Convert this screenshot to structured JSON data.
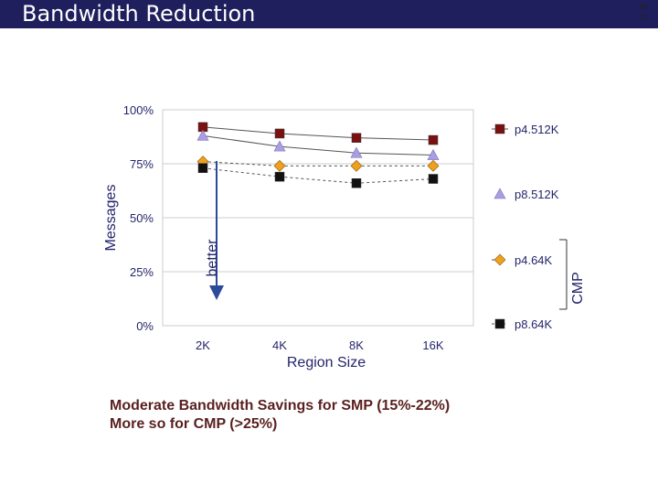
{
  "slide": {
    "title": "Bandwidth Reduction",
    "logo_line1": "M",
    "logo_line2": "OS"
  },
  "annotations": {
    "better_label": "better",
    "cmp_label": "CMP",
    "note_line1": "Moderate Bandwidth Savings for SMP (15%-22%)",
    "note_line2": "More so for CMP (>25%)"
  },
  "colors": {
    "title_bar": "#1f1f5e",
    "axis_text": "#24246b",
    "note_text": "#5a1f1f",
    "p4_512K": "#7b1010",
    "p8_512K": "#a99fe0",
    "p4_64K": "#f0a020",
    "p8_64K": "#111111"
  },
  "chart_data": {
    "type": "line",
    "title": "",
    "xlabel": "Region Size",
    "ylabel": "Messages",
    "categories": [
      "2K",
      "4K",
      "8K",
      "16K"
    ],
    "ylim": [
      0,
      100
    ],
    "yticks": [
      "0%",
      "25%",
      "50%",
      "75%",
      "100%"
    ],
    "grid": true,
    "legend_position": "right",
    "series": [
      {
        "name": "p4.512K",
        "values": [
          92,
          89,
          87,
          86
        ],
        "marker": "square",
        "line": "solid",
        "color": "#7b1010"
      },
      {
        "name": "p8.512K",
        "values": [
          88,
          83,
          80,
          79
        ],
        "marker": "triangle",
        "line": "solid",
        "color": "#a99fe0"
      },
      {
        "name": "p4.64K",
        "values": [
          76,
          74,
          74,
          74
        ],
        "marker": "diamond",
        "line": "dashed",
        "color": "#f0a020"
      },
      {
        "name": "p8.64K",
        "values": [
          73,
          69,
          66,
          68
        ],
        "marker": "square",
        "line": "dashed",
        "color": "#111111"
      }
    ]
  }
}
